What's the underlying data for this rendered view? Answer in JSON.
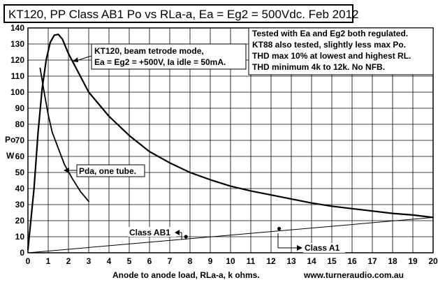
{
  "chart_data": {
    "type": "line",
    "title": "KT120, PP Class AB1 Po vs RLa-a, Ea = Eg2 = 500Vdc. Feb 2012",
    "xlabel": "Anode to anode load, RLa-a, k ohms.",
    "ylabel_top": "Po",
    "ylabel_bottom": "W",
    "xlim": [
      0,
      20
    ],
    "ylim": [
      0,
      140
    ],
    "x_ticks": [
      "0",
      "1",
      "2",
      "3",
      "4",
      "5",
      "6",
      "7",
      "8",
      "9",
      "10",
      "11",
      "12",
      "13",
      "14",
      "15",
      "16",
      "17",
      "18",
      "19",
      "20"
    ],
    "y_ticks": [
      "0",
      "10",
      "20",
      "30",
      "40",
      "50",
      "60",
      "70",
      "80",
      "90",
      "100",
      "110",
      "120",
      "130",
      "140"
    ],
    "grid": true,
    "series": [
      {
        "name": "Po",
        "x": [
          0,
          0.3,
          0.5,
          0.7,
          0.9,
          1.1,
          1.3,
          1.5,
          1.7,
          2.0,
          2.5,
          3,
          4,
          5,
          6,
          7,
          8,
          9,
          10,
          11,
          12,
          13,
          14,
          15,
          16,
          17,
          18,
          19,
          20
        ],
        "y": [
          2,
          40,
          75,
          102,
          120,
          131,
          135.5,
          136,
          133,
          124,
          112,
          100,
          85,
          73,
          63,
          56,
          50,
          45.5,
          41.5,
          38.5,
          36,
          33.5,
          31,
          29,
          27.5,
          26,
          24.5,
          23.5,
          22
        ]
      },
      {
        "name": "Pda, one tube.",
        "x": [
          0.6,
          0.8,
          1.0,
          1.2,
          1.5,
          1.8,
          2.2,
          2.6,
          3.0
        ],
        "y": [
          115,
          100,
          86,
          75,
          65,
          55,
          46,
          38,
          32
        ]
      },
      {
        "name": "Class A1 / Class AB1 boundary",
        "x": [
          0,
          20
        ],
        "y": [
          0,
          22
        ]
      }
    ],
    "markers": [
      {
        "x": 7.8,
        "y": 10
      },
      {
        "x": 12.4,
        "y": 15
      }
    ],
    "annotations": {
      "kt120_line1": "KT120, beam tetrode mode,",
      "kt120_line2": "Ea = Eg2 = +500V, Ia idle = 50mA.",
      "pda_label": "Pda, one tube.",
      "class_ab1": "Class AB1",
      "class_a1": "Class A1",
      "notes": [
        "Tested with Ea and Eg2 both regulated.",
        "KT88 also tested, slightly less max Po.",
        "THD max 10% at lowest and highest RL.",
        "THD minimum 4k to 12k. No NFB."
      ]
    },
    "url": "www.turneraudio.com.au"
  }
}
